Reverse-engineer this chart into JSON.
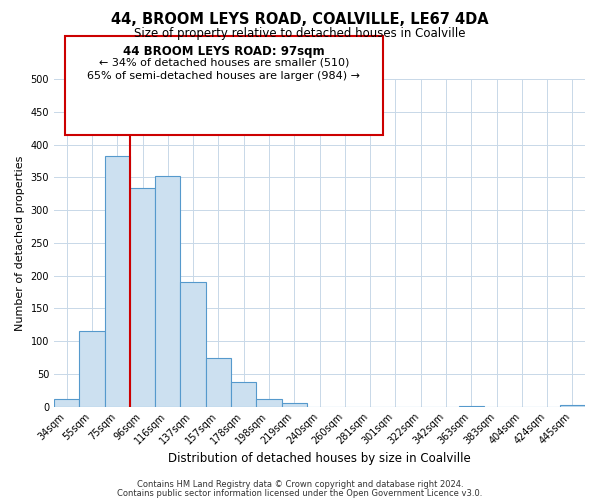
{
  "title": "44, BROOM LEYS ROAD, COALVILLE, LE67 4DA",
  "subtitle": "Size of property relative to detached houses in Coalville",
  "xlabel": "Distribution of detached houses by size in Coalville",
  "ylabel": "Number of detached properties",
  "bar_labels": [
    "34sqm",
    "55sqm",
    "75sqm",
    "96sqm",
    "116sqm",
    "137sqm",
    "157sqm",
    "178sqm",
    "198sqm",
    "219sqm",
    "240sqm",
    "260sqm",
    "281sqm",
    "301sqm",
    "322sqm",
    "342sqm",
    "363sqm",
    "383sqm",
    "404sqm",
    "424sqm",
    "445sqm"
  ],
  "bar_values": [
    12,
    115,
    383,
    333,
    352,
    190,
    75,
    38,
    12,
    5,
    0,
    0,
    0,
    0,
    0,
    0,
    1,
    0,
    0,
    0,
    2
  ],
  "bar_color": "#cce0f0",
  "bar_edge_color": "#5599cc",
  "ylim": [
    0,
    500
  ],
  "yticks": [
    0,
    50,
    100,
    150,
    200,
    250,
    300,
    350,
    400,
    450,
    500
  ],
  "vline_color": "#cc0000",
  "annotation_title": "44 BROOM LEYS ROAD: 97sqm",
  "annotation_line1": "← 34% of detached houses are smaller (510)",
  "annotation_line2": "65% of semi-detached houses are larger (984) →",
  "annotation_box_color": "#cc0000",
  "footer_line1": "Contains HM Land Registry data © Crown copyright and database right 2024.",
  "footer_line2": "Contains public sector information licensed under the Open Government Licence v3.0.",
  "background_color": "#ffffff",
  "grid_color": "#c8d8e8"
}
